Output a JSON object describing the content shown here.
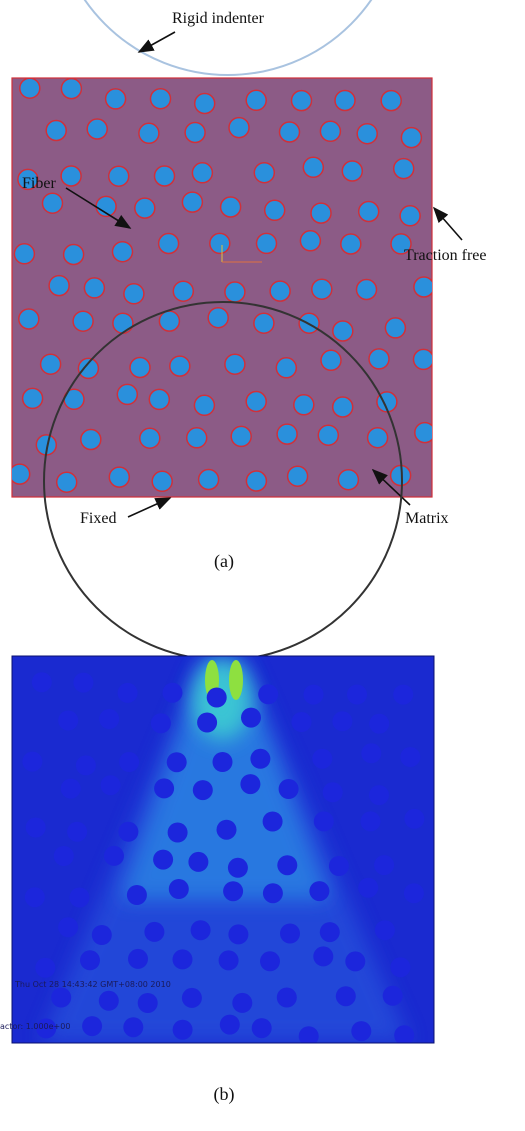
{
  "labels": {
    "indenter": "Rigid indenter",
    "fiber": "Fiber",
    "traction_free": "Traction free",
    "fixed": "Fixed",
    "matrix": "Matrix"
  },
  "captions": {
    "a": "(a)",
    "b": "(b)"
  },
  "overlay": {
    "timestamp": "Thu Oct 28 14:43:42 GMT+08:00 2010",
    "scale_factor": "actor: 1.000e+00"
  }
}
